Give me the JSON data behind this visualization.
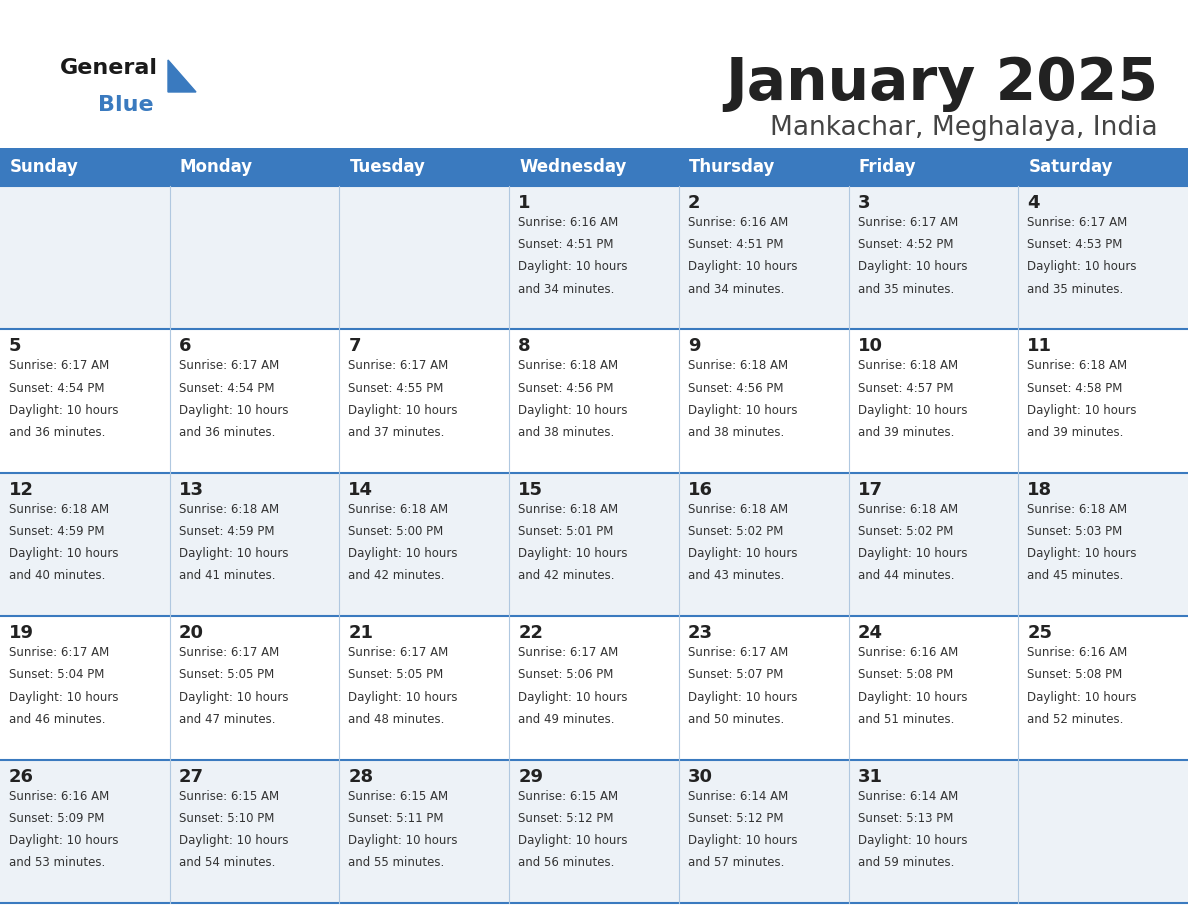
{
  "title": "January 2025",
  "subtitle": "Mankachar, Meghalaya, India",
  "header_bg": "#3a7abf",
  "header_text_color": "#ffffff",
  "cell_bg_odd": "#edf2f7",
  "cell_bg_even": "#ffffff",
  "border_color": "#3a7abf",
  "divider_color": "#a0b8d0",
  "day_headers": [
    "Sunday",
    "Monday",
    "Tuesday",
    "Wednesday",
    "Thursday",
    "Friday",
    "Saturday"
  ],
  "title_color": "#222222",
  "subtitle_color": "#444444",
  "day_num_color": "#222222",
  "info_color": "#333333",
  "days": [
    {
      "day": 1,
      "col": 3,
      "row": 0,
      "sunrise": "6:16 AM",
      "sunset": "4:51 PM",
      "daylight": "10 hours and 34 minutes."
    },
    {
      "day": 2,
      "col": 4,
      "row": 0,
      "sunrise": "6:16 AM",
      "sunset": "4:51 PM",
      "daylight": "10 hours and 34 minutes."
    },
    {
      "day": 3,
      "col": 5,
      "row": 0,
      "sunrise": "6:17 AM",
      "sunset": "4:52 PM",
      "daylight": "10 hours and 35 minutes."
    },
    {
      "day": 4,
      "col": 6,
      "row": 0,
      "sunrise": "6:17 AM",
      "sunset": "4:53 PM",
      "daylight": "10 hours and 35 minutes."
    },
    {
      "day": 5,
      "col": 0,
      "row": 1,
      "sunrise": "6:17 AM",
      "sunset": "4:54 PM",
      "daylight": "10 hours and 36 minutes."
    },
    {
      "day": 6,
      "col": 1,
      "row": 1,
      "sunrise": "6:17 AM",
      "sunset": "4:54 PM",
      "daylight": "10 hours and 36 minutes."
    },
    {
      "day": 7,
      "col": 2,
      "row": 1,
      "sunrise": "6:17 AM",
      "sunset": "4:55 PM",
      "daylight": "10 hours and 37 minutes."
    },
    {
      "day": 8,
      "col": 3,
      "row": 1,
      "sunrise": "6:18 AM",
      "sunset": "4:56 PM",
      "daylight": "10 hours and 38 minutes."
    },
    {
      "day": 9,
      "col": 4,
      "row": 1,
      "sunrise": "6:18 AM",
      "sunset": "4:56 PM",
      "daylight": "10 hours and 38 minutes."
    },
    {
      "day": 10,
      "col": 5,
      "row": 1,
      "sunrise": "6:18 AM",
      "sunset": "4:57 PM",
      "daylight": "10 hours and 39 minutes."
    },
    {
      "day": 11,
      "col": 6,
      "row": 1,
      "sunrise": "6:18 AM",
      "sunset": "4:58 PM",
      "daylight": "10 hours and 39 minutes."
    },
    {
      "day": 12,
      "col": 0,
      "row": 2,
      "sunrise": "6:18 AM",
      "sunset": "4:59 PM",
      "daylight": "10 hours and 40 minutes."
    },
    {
      "day": 13,
      "col": 1,
      "row": 2,
      "sunrise": "6:18 AM",
      "sunset": "4:59 PM",
      "daylight": "10 hours and 41 minutes."
    },
    {
      "day": 14,
      "col": 2,
      "row": 2,
      "sunrise": "6:18 AM",
      "sunset": "5:00 PM",
      "daylight": "10 hours and 42 minutes."
    },
    {
      "day": 15,
      "col": 3,
      "row": 2,
      "sunrise": "6:18 AM",
      "sunset": "5:01 PM",
      "daylight": "10 hours and 42 minutes."
    },
    {
      "day": 16,
      "col": 4,
      "row": 2,
      "sunrise": "6:18 AM",
      "sunset": "5:02 PM",
      "daylight": "10 hours and 43 minutes."
    },
    {
      "day": 17,
      "col": 5,
      "row": 2,
      "sunrise": "6:18 AM",
      "sunset": "5:02 PM",
      "daylight": "10 hours and 44 minutes."
    },
    {
      "day": 18,
      "col": 6,
      "row": 2,
      "sunrise": "6:18 AM",
      "sunset": "5:03 PM",
      "daylight": "10 hours and 45 minutes."
    },
    {
      "day": 19,
      "col": 0,
      "row": 3,
      "sunrise": "6:17 AM",
      "sunset": "5:04 PM",
      "daylight": "10 hours and 46 minutes."
    },
    {
      "day": 20,
      "col": 1,
      "row": 3,
      "sunrise": "6:17 AM",
      "sunset": "5:05 PM",
      "daylight": "10 hours and 47 minutes."
    },
    {
      "day": 21,
      "col": 2,
      "row": 3,
      "sunrise": "6:17 AM",
      "sunset": "5:05 PM",
      "daylight": "10 hours and 48 minutes."
    },
    {
      "day": 22,
      "col": 3,
      "row": 3,
      "sunrise": "6:17 AM",
      "sunset": "5:06 PM",
      "daylight": "10 hours and 49 minutes."
    },
    {
      "day": 23,
      "col": 4,
      "row": 3,
      "sunrise": "6:17 AM",
      "sunset": "5:07 PM",
      "daylight": "10 hours and 50 minutes."
    },
    {
      "day": 24,
      "col": 5,
      "row": 3,
      "sunrise": "6:16 AM",
      "sunset": "5:08 PM",
      "daylight": "10 hours and 51 minutes."
    },
    {
      "day": 25,
      "col": 6,
      "row": 3,
      "sunrise": "6:16 AM",
      "sunset": "5:08 PM",
      "daylight": "10 hours and 52 minutes."
    },
    {
      "day": 26,
      "col": 0,
      "row": 4,
      "sunrise": "6:16 AM",
      "sunset": "5:09 PM",
      "daylight": "10 hours and 53 minutes."
    },
    {
      "day": 27,
      "col": 1,
      "row": 4,
      "sunrise": "6:15 AM",
      "sunset": "5:10 PM",
      "daylight": "10 hours and 54 minutes."
    },
    {
      "day": 28,
      "col": 2,
      "row": 4,
      "sunrise": "6:15 AM",
      "sunset": "5:11 PM",
      "daylight": "10 hours and 55 minutes."
    },
    {
      "day": 29,
      "col": 3,
      "row": 4,
      "sunrise": "6:15 AM",
      "sunset": "5:12 PM",
      "daylight": "10 hours and 56 minutes."
    },
    {
      "day": 30,
      "col": 4,
      "row": 4,
      "sunrise": "6:14 AM",
      "sunset": "5:12 PM",
      "daylight": "10 hours and 57 minutes."
    },
    {
      "day": 31,
      "col": 5,
      "row": 4,
      "sunrise": "6:14 AM",
      "sunset": "5:13 PM",
      "daylight": "10 hours and 59 minutes."
    }
  ]
}
